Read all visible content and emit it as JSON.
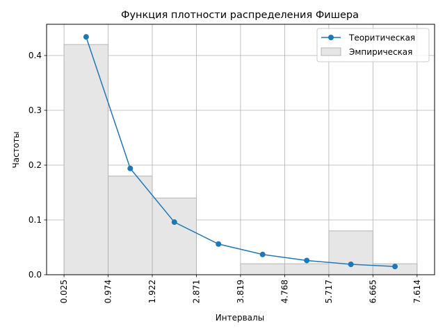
{
  "chart_data": {
    "type": "bar",
    "title": "Функция плотности распределения Фишера",
    "xlabel": "Интервалы",
    "ylabel": "Частоты",
    "grid": true,
    "legend_placement": "top-right",
    "xlim": [
      -0.35,
      7.99
    ],
    "ylim": [
      0,
      0.457
    ],
    "x_ticks": [
      "0.025",
      "0.974",
      "1.922",
      "2.871",
      "3.819",
      "4.768",
      "5.717",
      "6.665",
      "7.614"
    ],
    "y_ticks": [
      "0.0",
      "0.1",
      "0.2",
      "0.3",
      "0.4"
    ],
    "series": [
      {
        "name": "Эмпирическая",
        "kind": "histogram",
        "color": "#e6e6e6",
        "edge_color": "#b4b4b4",
        "bin_edges": [
          0.025,
          0.974,
          1.922,
          2.871,
          3.819,
          4.768,
          5.717,
          6.665,
          7.614
        ],
        "values": [
          0.42,
          0.18,
          0.14,
          0.0,
          0.02,
          0.02,
          0.08,
          0.02
        ]
      },
      {
        "name": "Теоритическая",
        "kind": "line",
        "marker": "circle",
        "color": "#1f77b4",
        "x": [
          0.4995,
          1.448,
          2.3965,
          3.345,
          4.2935,
          5.2425,
          6.191,
          7.1395
        ],
        "values": [
          0.434,
          0.194,
          0.096,
          0.056,
          0.037,
          0.026,
          0.019,
          0.015
        ]
      }
    ]
  }
}
